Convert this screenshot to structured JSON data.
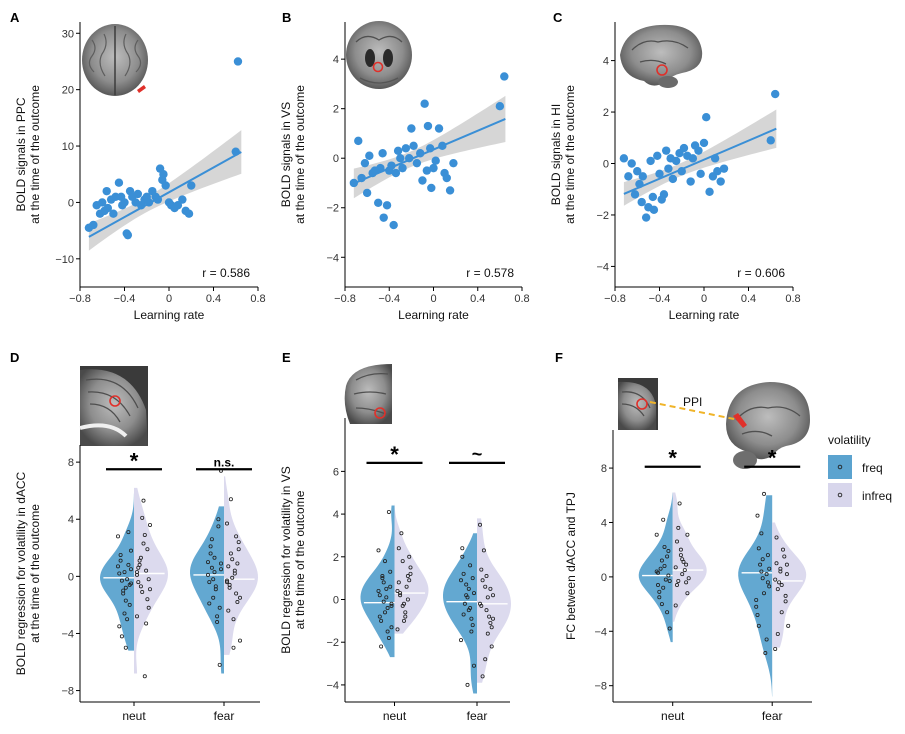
{
  "colors": {
    "blue": "#3a8fd6",
    "freq": "#5ba3cf",
    "infreq": "#d8d6ec",
    "band": "#c8c8c8",
    "sig_line": "#000000",
    "ppi_line": "#f0b429",
    "roi": "#e0302a"
  },
  "legend": {
    "title": "volatility",
    "items": [
      "freq",
      "infreq"
    ]
  },
  "ppi_label": "PPI",
  "chart_data": [
    {
      "id": "A",
      "type": "scatter",
      "label": "A",
      "xlabel": "Learning rate",
      "ylabel": [
        "BOLD signals in PPC",
        "at the time of the outcome"
      ],
      "xlim": [
        -0.8,
        0.8
      ],
      "ylim": [
        -15,
        32
      ],
      "xticks": [
        -0.8,
        -0.4,
        0,
        0.4,
        0.8
      ],
      "xticklabels": [
        "−0.8",
        "−0.4",
        "0",
        "0.4",
        "0.8"
      ],
      "yticks": [
        -10,
        0,
        10,
        20,
        30
      ],
      "yticklabels": [
        "−10",
        "0",
        "10",
        "20",
        "30"
      ],
      "annotation": "r = 0.586",
      "fit": {
        "slope": 11.0,
        "intercept": 1.8,
        "xmin": -0.72,
        "xmax": 0.65
      },
      "points": [
        [
          -0.72,
          -4.5
        ],
        [
          -0.68,
          -4
        ],
        [
          -0.65,
          -0.5
        ],
        [
          -0.62,
          -2
        ],
        [
          -0.6,
          0
        ],
        [
          -0.58,
          -1.5
        ],
        [
          -0.56,
          2
        ],
        [
          -0.55,
          -1
        ],
        [
          -0.52,
          0.5
        ],
        [
          -0.5,
          -2
        ],
        [
          -0.48,
          1
        ],
        [
          -0.45,
          3.5
        ],
        [
          -0.43,
          1
        ],
        [
          -0.42,
          -0.5
        ],
        [
          -0.4,
          0
        ],
        [
          -0.38,
          -5.5
        ],
        [
          -0.37,
          -5.8
        ],
        [
          -0.35,
          2
        ],
        [
          -0.33,
          1
        ],
        [
          -0.3,
          0
        ],
        [
          -0.28,
          1.5
        ],
        [
          -0.25,
          -0.5
        ],
        [
          -0.22,
          0.5
        ],
        [
          -0.2,
          1
        ],
        [
          -0.18,
          0
        ],
        [
          -0.15,
          2
        ],
        [
          -0.12,
          1
        ],
        [
          -0.1,
          0.5
        ],
        [
          -0.08,
          6
        ],
        [
          -0.06,
          4
        ],
        [
          -0.05,
          5
        ],
        [
          -0.03,
          3
        ],
        [
          0.0,
          0
        ],
        [
          0.02,
          -0.5
        ],
        [
          0.05,
          -1
        ],
        [
          0.08,
          -0.5
        ],
        [
          0.12,
          0.5
        ],
        [
          0.15,
          -1.5
        ],
        [
          0.18,
          -2
        ],
        [
          0.2,
          3
        ],
        [
          0.6,
          9
        ],
        [
          0.62,
          25
        ]
      ]
    },
    {
      "id": "B",
      "type": "scatter",
      "label": "B",
      "xlabel": "Learning rate",
      "ylabel": [
        "BOLD signals in VS",
        "at the time of the outcome"
      ],
      "xlim": [
        -0.8,
        0.8
      ],
      "ylim": [
        -5.2,
        5.5
      ],
      "xticks": [
        -0.8,
        -0.4,
        0,
        0.4,
        0.8
      ],
      "xticklabels": [
        "−0.8",
        "−0.4",
        "0",
        "0.4",
        "0.8"
      ],
      "yticks": [
        -4,
        -2,
        0,
        2,
        4
      ],
      "yticklabels": [
        "−4",
        "−2",
        "0",
        "2",
        "4"
      ],
      "annotation": "r = 0.578",
      "fit": {
        "slope": 1.9,
        "intercept": 0.35,
        "xmin": -0.72,
        "xmax": 0.65
      },
      "points": [
        [
          -0.72,
          -1
        ],
        [
          -0.68,
          0.7
        ],
        [
          -0.65,
          -0.8
        ],
        [
          -0.62,
          -0.2
        ],
        [
          -0.6,
          -1.4
        ],
        [
          -0.58,
          0.1
        ],
        [
          -0.55,
          -0.6
        ],
        [
          -0.53,
          -0.5
        ],
        [
          -0.5,
          -1.8
        ],
        [
          -0.48,
          -0.4
        ],
        [
          -0.46,
          0.2
        ],
        [
          -0.45,
          -2.4
        ],
        [
          -0.42,
          -1.9
        ],
        [
          -0.4,
          -0.5
        ],
        [
          -0.38,
          -0.3
        ],
        [
          -0.36,
          -2.7
        ],
        [
          -0.34,
          -0.6
        ],
        [
          -0.32,
          0.3
        ],
        [
          -0.3,
          0
        ],
        [
          -0.28,
          -0.4
        ],
        [
          -0.25,
          0.4
        ],
        [
          -0.22,
          0
        ],
        [
          -0.2,
          1.2
        ],
        [
          -0.18,
          0.5
        ],
        [
          -0.15,
          -0.2
        ],
        [
          -0.12,
          0.2
        ],
        [
          -0.1,
          -0.9
        ],
        [
          -0.08,
          2.2
        ],
        [
          -0.06,
          -0.5
        ],
        [
          -0.05,
          1.3
        ],
        [
          -0.03,
          0.4
        ],
        [
          -0.02,
          -1.2
        ],
        [
          0.0,
          -0.4
        ],
        [
          0.02,
          -0.1
        ],
        [
          0.05,
          1.2
        ],
        [
          0.08,
          0.5
        ],
        [
          0.1,
          -0.6
        ],
        [
          0.12,
          -0.8
        ],
        [
          0.15,
          -1.3
        ],
        [
          0.18,
          -0.2
        ],
        [
          0.6,
          2.1
        ],
        [
          0.64,
          3.3
        ]
      ]
    },
    {
      "id": "C",
      "type": "scatter",
      "label": "C",
      "xlabel": "Learning rate",
      "ylabel": [
        "BOLD signals in HI",
        "at the time of the outcome"
      ],
      "xlim": [
        -0.8,
        0.8
      ],
      "ylim": [
        -4.8,
        5.5
      ],
      "xticks": [
        -0.8,
        -0.4,
        0,
        0.4,
        0.8
      ],
      "xticklabels": [
        "−0.8",
        "−0.4",
        "0",
        "0.4",
        "0.8"
      ],
      "yticks": [
        -4,
        -2,
        0,
        2,
        4
      ],
      "yticklabels": [
        "−4",
        "−2",
        "0",
        "2",
        "4"
      ],
      "annotation": "r = 0.606",
      "fit": {
        "slope": 1.85,
        "intercept": 0.15,
        "xmin": -0.72,
        "xmax": 0.65
      },
      "points": [
        [
          -0.72,
          0.2
        ],
        [
          -0.68,
          -0.5
        ],
        [
          -0.65,
          0
        ],
        [
          -0.62,
          -1.2
        ],
        [
          -0.6,
          -0.3
        ],
        [
          -0.58,
          -0.8
        ],
        [
          -0.56,
          -1.5
        ],
        [
          -0.55,
          -0.5
        ],
        [
          -0.52,
          -2.1
        ],
        [
          -0.5,
          -1.7
        ],
        [
          -0.48,
          0.1
        ],
        [
          -0.46,
          -1.3
        ],
        [
          -0.45,
          -1.8
        ],
        [
          -0.42,
          0.3
        ],
        [
          -0.4,
          -0.4
        ],
        [
          -0.38,
          -1.4
        ],
        [
          -0.36,
          -1.2
        ],
        [
          -0.34,
          0.5
        ],
        [
          -0.32,
          -0.2
        ],
        [
          -0.3,
          0.2
        ],
        [
          -0.28,
          -0.6
        ],
        [
          -0.25,
          0.1
        ],
        [
          -0.22,
          0.4
        ],
        [
          -0.2,
          -0.3
        ],
        [
          -0.18,
          0.6
        ],
        [
          -0.15,
          0.3
        ],
        [
          -0.12,
          -0.7
        ],
        [
          -0.1,
          0.2
        ],
        [
          -0.08,
          0.7
        ],
        [
          -0.05,
          0.5
        ],
        [
          -0.03,
          -0.4
        ],
        [
          0.0,
          0.8
        ],
        [
          0.02,
          1.8
        ],
        [
          0.05,
          -1.1
        ],
        [
          0.08,
          -0.5
        ],
        [
          0.1,
          0.2
        ],
        [
          0.12,
          -0.3
        ],
        [
          0.15,
          -0.7
        ],
        [
          0.18,
          -0.2
        ],
        [
          0.6,
          0.9
        ],
        [
          0.64,
          2.7
        ]
      ]
    },
    {
      "id": "D",
      "type": "violin",
      "label": "D",
      "categories": [
        "neut",
        "fear"
      ],
      "ylabel": [
        "BOLD regression for volatility in dACC",
        "at the time of the outcome"
      ],
      "ylim": [
        -8.8,
        9.2
      ],
      "yticks": [
        -8,
        -4,
        0,
        4,
        8
      ],
      "yticklabels": [
        "−8",
        "−4",
        "0",
        "4",
        "8"
      ],
      "series": [
        {
          "name": "freq",
          "medians": [
            -0.1,
            0.1
          ],
          "ranges": [
            [
              -5.2,
              5.8
            ],
            [
              -6.8,
              4.9
            ]
          ],
          "points": [
            [
              -0.5,
              -0.8,
              1.5,
              -2,
              0.3,
              -3.5,
              0.8,
              -1.2,
              2.8,
              -0.2,
              -4.2,
              0.5,
              -1.7,
              1.1,
              -0.6,
              -2.6,
              0.2,
              3.1,
              -1.0,
              0.7,
              -3.0,
              -0.3,
              1.8,
              -5.0
            ],
            [
              0.5,
              -0.9,
              2.1,
              -2.2,
              1.3,
              -0.4,
              3.5,
              -1.5,
              0.1,
              -3.2,
              2.6,
              0.9,
              -0.7,
              1.6,
              -6.2,
              0.3,
              -1.9,
              4.0,
              -0.2,
              1.0,
              -2.8,
              0.6,
              7.4
            ]
          ]
        },
        {
          "name": "infreq",
          "medians": [
            0.2,
            -0.2
          ],
          "ranges": [
            [
              -6.8,
              6.2
            ],
            [
              -5.5,
              7.0
            ]
          ],
          "points": [
            [
              0.3,
              -1.1,
              1.9,
              -0.4,
              5.3,
              -2.2,
              0.8,
              2.9,
              -0.9,
              1.3,
              -3.3,
              0.1,
              4.1,
              -1.6,
              0.6,
              2.3,
              -0.2,
              1.1,
              -7.0,
              3.6,
              -0.7,
              0.4,
              -2.8
            ],
            [
              -0.3,
              1.2,
              -1.8,
              0.7,
              -3.0,
              2.4,
              -0.6,
              0.2,
              -4.5,
              1.6,
              -1.2,
              3.7,
              -0.1,
              0.9,
              -2.4,
              -5.0,
              1.9,
              -0.8,
              0.4,
              -1.5,
              5.4,
              2.8,
              -0.4
            ]
          ]
        }
      ],
      "significance": [
        {
          "category": "neut",
          "y": 7.5,
          "text": "*"
        },
        {
          "category": "fear",
          "y": 7.5,
          "text": "n.s."
        }
      ]
    },
    {
      "id": "E",
      "type": "violin",
      "label": "E",
      "categories": [
        "neut",
        "fear"
      ],
      "ylabel": [
        "BOLD regression for volatility in VS",
        "at the time of the outcome"
      ],
      "ylim": [
        -4.8,
        8.5
      ],
      "yticks": [
        -4,
        -2,
        0,
        2,
        4,
        6
      ],
      "yticklabels": [
        "−4",
        "−2",
        "0",
        "2",
        "4",
        "6"
      ],
      "series": [
        {
          "name": "freq",
          "medians": [
            -0.15,
            -0.1
          ],
          "ranges": [
            [
              -2.7,
              4.4
            ],
            [
              -4.4,
              3.1
            ]
          ],
          "points": [
            [
              -0.2,
              0.5,
              -1.0,
              1.3,
              -0.6,
              0.2,
              -1.8,
              0.8,
              2.3,
              -0.4,
              1.0,
              -1.3,
              0.1,
              -2.2,
              0.6,
              1.8,
              -0.8,
              4.1,
              -0.1,
              0.4,
              -1.5,
              1.1,
              -0.3
            ],
            [
              0.3,
              -0.5,
              1.2,
              -1.2,
              0.1,
              2.4,
              -0.9,
              0.7,
              -1.9,
              1.6,
              -0.2,
              -3.1,
              0.5,
              -0.7,
              1.0,
              -4.0,
              2.0,
              -1.5,
              0.2,
              0.9,
              -0.4
            ]
          ]
        },
        {
          "name": "infreq",
          "medians": [
            0.3,
            -0.2
          ],
          "ranges": [
            [
              -1.6,
              4.5
            ],
            [
              -3.9,
              3.8
            ]
          ],
          "points": [
            [
              0.4,
              -0.3,
              1.1,
              0.8,
              -1.0,
              2.0,
              0.2,
              -0.6,
              1.5,
              3.1,
              0.6,
              -1.4,
              1.8,
              0.0,
              2.4,
              -0.2,
              0.9,
              0.3,
              -0.8,
              1.2
            ],
            [
              -0.2,
              0.6,
              -1.1,
              1.4,
              -0.5,
              -2.2,
              0.9,
              -1.6,
              0.2,
              2.3,
              -0.8,
              3.5,
              -2.8,
              0.5,
              -0.3,
              1.1,
              -1.3,
              -3.6,
              0.1,
              -0.9
            ]
          ]
        }
      ],
      "significance": [
        {
          "category": "neut",
          "y": 6.4,
          "text": "*"
        },
        {
          "category": "fear",
          "y": 6.4,
          "text": "~"
        }
      ]
    },
    {
      "id": "F",
      "type": "violin",
      "label": "F",
      "categories": [
        "neut",
        "fear"
      ],
      "ylabel": [
        "FC between dACC and TPJ"
      ],
      "ylim": [
        -9.2,
        10.8
      ],
      "yticks": [
        -8,
        -4,
        0,
        4,
        8
      ],
      "yticklabels": [
        "−8",
        "−4",
        "0",
        "4",
        "8"
      ],
      "series": [
        {
          "name": "freq",
          "medians": [
            0.1,
            0.3
          ],
          "ranges": [
            [
              -4.8,
              6.2
            ],
            [
              -8.8,
              6.0
            ]
          ],
          "points": [
            [
              -0.3,
              0.8,
              -1.5,
              1.9,
              -0.8,
              0.3,
              -2.6,
              1.2,
              3.1,
              -0.2,
              0.6,
              -3.8,
              2.2,
              -1.1,
              0.1,
              4.2,
              -0.6,
              1.5,
              -2.0,
              0.4
            ],
            [
              0.6,
              -1.2,
              2.1,
              -0.4,
              1.3,
              -2.8,
              0.2,
              3.2,
              -1.7,
              -5.6,
              0.9,
              -0.7,
              6.1,
              -3.6,
              1.6,
              -0.1,
              4.5,
              -4.6,
              0.4,
              -2.2
            ]
          ]
        },
        {
          "name": "infreq",
          "medians": [
            0.5,
            -0.3
          ],
          "ranges": [
            [
              -3.3,
              6.2
            ],
            [
              -5.2,
              4.0
            ]
          ],
          "points": [
            [
              0.7,
              1.6,
              -0.4,
              2.6,
              0.2,
              -1.2,
              3.6,
              1.1,
              -0.1,
              5.4,
              0.5,
              -2.1,
              2.0,
              0.9,
              -0.6,
              1.3,
              3.1,
              -0.3
            ],
            [
              -0.2,
              0.6,
              -1.4,
              1.0,
              -2.6,
              0.2,
              -0.9,
              2.0,
              -3.6,
              -0.4,
              1.5,
              -5.3,
              0.4,
              -1.8,
              2.9,
              -0.6,
              0.9,
              -4.2
            ]
          ]
        }
      ],
      "significance": [
        {
          "category": "neut",
          "y": 8.1,
          "text": "*"
        },
        {
          "category": "fear",
          "y": 8.1,
          "text": "*"
        }
      ]
    }
  ]
}
